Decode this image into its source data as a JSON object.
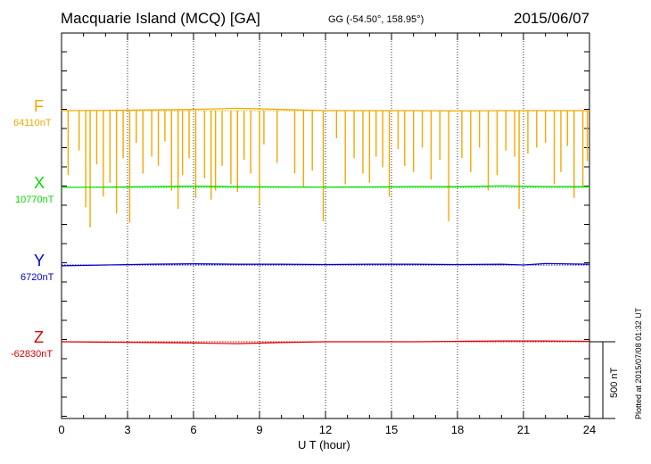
{
  "header": {
    "title": "Macquarie Island (MCQ)  [GA]",
    "coords": "GG (-54.50°, 158.95°)",
    "date": "2015/06/07"
  },
  "footer": {
    "plotted": "Plotted at 2015/07/08 01:32 UT"
  },
  "scale_bar": {
    "label": "500 nT",
    "value_nT": 500
  },
  "colors": {
    "F": "#f5a800",
    "X": "#00dd00",
    "Y": "#0000cc",
    "Z": "#dd0000"
  },
  "components": [
    {
      "letter": "F",
      "baseline": "64110nT",
      "color": "#f5a800"
    },
    {
      "letter": "X",
      "baseline": "10770nT",
      "color": "#00dd00"
    },
    {
      "letter": "Y",
      "baseline": "6720nT",
      "color": "#0000cc"
    },
    {
      "letter": "Z",
      "baseline": "-62830nT",
      "color": "#dd0000"
    }
  ],
  "chart_data": {
    "type": "line",
    "xlabel": "U T (hour)",
    "xlim": [
      0,
      24
    ],
    "xticks": [
      "0",
      "3",
      "6",
      "9",
      "12",
      "15",
      "18",
      "21",
      "24"
    ],
    "grid": "vertical dotted every 3 hours",
    "series": [
      {
        "name": "F",
        "baseline_nT": 64110,
        "x": [
          0,
          2,
          4,
          6,
          8,
          10,
          12,
          14,
          16,
          18,
          20,
          22,
          24
        ],
        "y": [
          0,
          2,
          5,
          8,
          15,
          8,
          0,
          0,
          0,
          -2,
          0,
          0,
          0
        ],
        "spikes": [
          {
            "t": 0.3,
            "d": -420
          },
          {
            "t": 0.8,
            "d": -260
          },
          {
            "t": 1.1,
            "d": -630
          },
          {
            "t": 1.3,
            "d": -760
          },
          {
            "t": 1.6,
            "d": -350
          },
          {
            "t": 1.9,
            "d": -560
          },
          {
            "t": 2.2,
            "d": -470
          },
          {
            "t": 2.5,
            "d": -670
          },
          {
            "t": 2.8,
            "d": -310
          },
          {
            "t": 3.1,
            "d": -730
          },
          {
            "t": 3.4,
            "d": -210
          },
          {
            "t": 3.7,
            "d": -410
          },
          {
            "t": 4.1,
            "d": -300
          },
          {
            "t": 4.4,
            "d": -360
          },
          {
            "t": 4.7,
            "d": -200
          },
          {
            "t": 5.0,
            "d": -520
          },
          {
            "t": 5.3,
            "d": -640
          },
          {
            "t": 5.5,
            "d": -420
          },
          {
            "t": 5.8,
            "d": -310
          },
          {
            "t": 6.1,
            "d": -570
          },
          {
            "t": 6.5,
            "d": -440
          },
          {
            "t": 6.8,
            "d": -580
          },
          {
            "t": 7.0,
            "d": -520
          },
          {
            "t": 7.3,
            "d": -360
          },
          {
            "t": 7.7,
            "d": -480
          },
          {
            "t": 8.0,
            "d": -530
          },
          {
            "t": 8.3,
            "d": -320
          },
          {
            "t": 8.6,
            "d": -410
          },
          {
            "t": 9.0,
            "d": -610
          },
          {
            "t": 9.2,
            "d": -220
          },
          {
            "t": 9.8,
            "d": -340
          },
          {
            "t": 10.6,
            "d": -410
          },
          {
            "t": 11.0,
            "d": -500
          },
          {
            "t": 11.4,
            "d": -390
          },
          {
            "t": 11.9,
            "d": -720
          },
          {
            "t": 12.5,
            "d": -180
          },
          {
            "t": 12.9,
            "d": -480
          },
          {
            "t": 13.3,
            "d": -310
          },
          {
            "t": 13.7,
            "d": -410
          },
          {
            "t": 14.0,
            "d": -470
          },
          {
            "t": 14.3,
            "d": -300
          },
          {
            "t": 14.6,
            "d": -370
          },
          {
            "t": 14.9,
            "d": -560
          },
          {
            "t": 15.3,
            "d": -250
          },
          {
            "t": 15.6,
            "d": -360
          },
          {
            "t": 16.0,
            "d": -400
          },
          {
            "t": 16.4,
            "d": -240
          },
          {
            "t": 16.8,
            "d": -450
          },
          {
            "t": 17.2,
            "d": -320
          },
          {
            "t": 17.6,
            "d": -720
          },
          {
            "t": 18.2,
            "d": -310
          },
          {
            "t": 18.6,
            "d": -400
          },
          {
            "t": 19.0,
            "d": -240
          },
          {
            "t": 19.4,
            "d": -520
          },
          {
            "t": 19.8,
            "d": -420
          },
          {
            "t": 20.2,
            "d": -260
          },
          {
            "t": 20.6,
            "d": -300
          },
          {
            "t": 20.8,
            "d": -640
          },
          {
            "t": 21.2,
            "d": -280
          },
          {
            "t": 21.6,
            "d": -240
          },
          {
            "t": 22.0,
            "d": -210
          },
          {
            "t": 22.4,
            "d": -480
          },
          {
            "t": 22.7,
            "d": -400
          },
          {
            "t": 23.0,
            "d": -230
          },
          {
            "t": 23.3,
            "d": -570
          },
          {
            "t": 23.7,
            "d": -500
          },
          {
            "t": 23.9,
            "d": -330
          }
        ]
      },
      {
        "name": "X",
        "baseline_nT": 10770,
        "x": [
          0,
          2,
          4,
          6,
          8,
          10,
          12,
          14,
          16,
          18,
          20,
          22,
          24
        ],
        "y": [
          0,
          2,
          5,
          8,
          5,
          3,
          2,
          3,
          5,
          5,
          10,
          5,
          5
        ]
      },
      {
        "name": "Y",
        "baseline_nT": 6720,
        "x": [
          0,
          2,
          4,
          6,
          8,
          10,
          12,
          14,
          16,
          18,
          20,
          21,
          22,
          24
        ],
        "y": [
          -5,
          0,
          5,
          8,
          5,
          5,
          3,
          5,
          5,
          3,
          5,
          0,
          10,
          5
        ]
      },
      {
        "name": "Z",
        "baseline_nT": -62830,
        "x": [
          0,
          2,
          4,
          6,
          8,
          10,
          12,
          14,
          16,
          18,
          20,
          22,
          24
        ],
        "y": [
          0,
          -3,
          -5,
          -8,
          -12,
          -5,
          0,
          0,
          0,
          3,
          5,
          5,
          3
        ]
      }
    ]
  }
}
